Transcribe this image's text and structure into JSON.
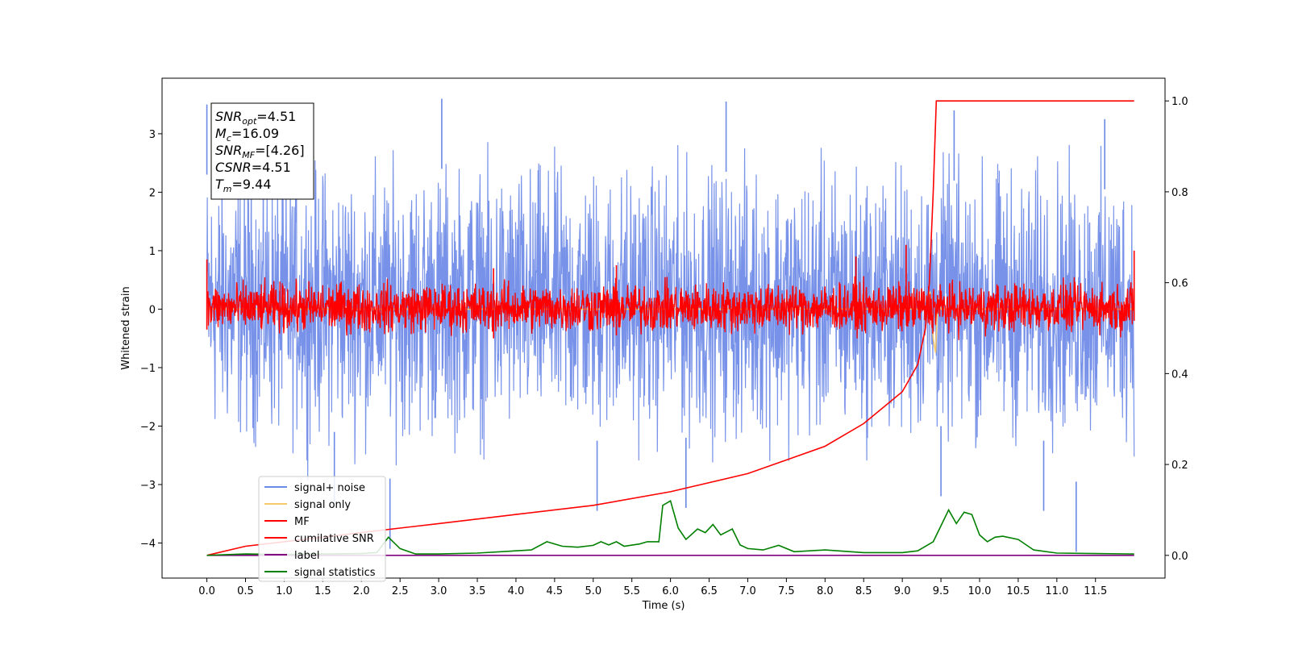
{
  "chart_data": {
    "type": "line",
    "title": "",
    "xlabel": "Time (s)",
    "ylabel": "Whitened strain",
    "y2label": "",
    "xlim": [
      -0.58,
      12.4
    ],
    "ylim": [
      -4.6,
      3.95
    ],
    "y2lim": [
      -0.05,
      1.05
    ],
    "x_ticks": [
      0.0,
      0.5,
      1.0,
      1.5,
      2.0,
      2.5,
      3.0,
      3.5,
      4.0,
      4.5,
      5.0,
      5.5,
      6.0,
      6.5,
      7.0,
      7.5,
      8.0,
      8.5,
      9.0,
      9.5,
      10.0,
      10.5,
      11.0,
      11.5
    ],
    "x_tick_labels": [
      "0.0",
      "0.5",
      "1.0",
      "1.5",
      "2.0",
      "2.5",
      "3.0",
      "3.5",
      "4.0",
      "4.5",
      "5.0",
      "5.5",
      "6.0",
      "6.5",
      "7.0",
      "7.5",
      "8.0",
      "8.5",
      "9.0",
      "9.5",
      "10.0",
      "10.5",
      "11.0",
      "11.5"
    ],
    "y_ticks": [
      -4,
      -3,
      -2,
      -1,
      0,
      1,
      2,
      3
    ],
    "y_tick_labels": [
      "−4",
      "−3",
      "−2",
      "−1",
      "0",
      "1",
      "2",
      "3"
    ],
    "y2_ticks": [
      0.0,
      0.2,
      0.4,
      0.6,
      0.8,
      1.0
    ],
    "y2_tick_labels": [
      "0.0",
      "0.2",
      "0.4",
      "0.6",
      "0.8",
      "1.0"
    ],
    "grid": false,
    "legend_position": "bottom-left",
    "series": [
      {
        "name": "signal+ noise",
        "color": "#6b89e6",
        "axis": "left",
        "style": "noise",
        "x_range": [
          0.0,
          12.0
        ],
        "spread_y": [
          -1.9,
          2.1
        ],
        "spike_points": [
          [
            0.0,
            3.5
          ],
          [
            3.04,
            3.6
          ],
          [
            6.72,
            3.55
          ],
          [
            9.67,
            3.4
          ],
          [
            11.62,
            3.25
          ],
          [
            2.37,
            -4.1
          ],
          [
            11.25,
            -4.15
          ],
          [
            5.05,
            -3.45
          ],
          [
            6.2,
            -3.4
          ],
          [
            9.5,
            -3.2
          ],
          [
            1.65,
            -3.3
          ],
          [
            10.83,
            -3.45
          ]
        ]
      },
      {
        "name": "signal only",
        "color": "#f5c96b",
        "axis": "left",
        "points": [
          [
            0.0,
            0.0
          ],
          [
            9.3,
            0.0
          ],
          [
            9.36,
            0.3
          ],
          [
            9.4,
            -0.5
          ],
          [
            9.43,
            -0.75
          ],
          [
            9.46,
            0.2
          ],
          [
            9.5,
            0.0
          ],
          [
            12.0,
            0.0
          ]
        ]
      },
      {
        "name": "MF",
        "color": "#ff0000",
        "axis": "left",
        "style": "noise",
        "x_range": [
          0.0,
          12.0
        ],
        "spread_y": [
          -0.35,
          0.4
        ],
        "spike_points": [
          [
            0.0,
            0.85
          ],
          [
            12.0,
            1.0
          ],
          [
            3.71,
            0.7
          ],
          [
            5.3,
            0.75
          ],
          [
            8.4,
            0.9
          ],
          [
            9.05,
            1.1
          ]
        ]
      },
      {
        "name": "cumilative SNR",
        "color": "#ff0000",
        "axis": "right",
        "points": [
          [
            0.0,
            0.0
          ],
          [
            0.5,
            0.02
          ],
          [
            1.0,
            0.03
          ],
          [
            2.0,
            0.05
          ],
          [
            3.0,
            0.07
          ],
          [
            4.0,
            0.09
          ],
          [
            5.0,
            0.11
          ],
          [
            6.0,
            0.14
          ],
          [
            7.0,
            0.18
          ],
          [
            7.5,
            0.21
          ],
          [
            8.0,
            0.24
          ],
          [
            8.5,
            0.29
          ],
          [
            9.0,
            0.36
          ],
          [
            9.2,
            0.42
          ],
          [
            9.3,
            0.5
          ],
          [
            9.35,
            0.6
          ],
          [
            9.4,
            0.8
          ],
          [
            9.44,
            1.0
          ],
          [
            12.0,
            1.0
          ]
        ]
      },
      {
        "name": "label",
        "color": "#800080",
        "axis": "right",
        "points": [
          [
            0.0,
            0.0
          ],
          [
            12.0,
            0.0
          ]
        ]
      },
      {
        "name": "signal statistics",
        "color": "#008000",
        "axis": "right",
        "points": [
          [
            0.0,
            0.0
          ],
          [
            0.5,
            0.003
          ],
          [
            1.0,
            0.002
          ],
          [
            1.5,
            0.003
          ],
          [
            2.0,
            0.004
          ],
          [
            2.2,
            0.006
          ],
          [
            2.35,
            0.04
          ],
          [
            2.5,
            0.015
          ],
          [
            2.7,
            0.003
          ],
          [
            3.0,
            0.003
          ],
          [
            3.5,
            0.005
          ],
          [
            4.0,
            0.01
          ],
          [
            4.2,
            0.012
          ],
          [
            4.4,
            0.03
          ],
          [
            4.6,
            0.02
          ],
          [
            4.8,
            0.018
          ],
          [
            5.0,
            0.022
          ],
          [
            5.1,
            0.03
          ],
          [
            5.2,
            0.023
          ],
          [
            5.3,
            0.03
          ],
          [
            5.4,
            0.02
          ],
          [
            5.6,
            0.025
          ],
          [
            5.7,
            0.03
          ],
          [
            5.85,
            0.03
          ],
          [
            5.9,
            0.11
          ],
          [
            6.0,
            0.12
          ],
          [
            6.1,
            0.06
          ],
          [
            6.2,
            0.035
          ],
          [
            6.35,
            0.058
          ],
          [
            6.45,
            0.05
          ],
          [
            6.55,
            0.068
          ],
          [
            6.65,
            0.045
          ],
          [
            6.8,
            0.058
          ],
          [
            6.9,
            0.023
          ],
          [
            7.0,
            0.015
          ],
          [
            7.2,
            0.012
          ],
          [
            7.4,
            0.022
          ],
          [
            7.6,
            0.008
          ],
          [
            8.0,
            0.012
          ],
          [
            8.5,
            0.006
          ],
          [
            9.0,
            0.006
          ],
          [
            9.2,
            0.01
          ],
          [
            9.4,
            0.03
          ],
          [
            9.6,
            0.1
          ],
          [
            9.7,
            0.07
          ],
          [
            9.8,
            0.095
          ],
          [
            9.9,
            0.09
          ],
          [
            10.0,
            0.045
          ],
          [
            10.1,
            0.03
          ],
          [
            10.2,
            0.04
          ],
          [
            10.3,
            0.042
          ],
          [
            10.5,
            0.035
          ],
          [
            10.7,
            0.012
          ],
          [
            11.0,
            0.005
          ],
          [
            11.5,
            0.004
          ],
          [
            12.0,
            0.003
          ]
        ]
      }
    ],
    "info_box": {
      "lines": [
        {
          "sym": "SNR",
          "sub": "opt",
          "val": "=4.51"
        },
        {
          "sym": "M",
          "sub": "c",
          "val": "=16.09"
        },
        {
          "sym": "SNR",
          "sub": "MF",
          "val": "=[4.26]"
        },
        {
          "sym": "CSNR",
          "sub": "",
          "val": "=4.51"
        },
        {
          "sym": "T",
          "sub": "m",
          "val": "=9.44"
        }
      ]
    }
  }
}
